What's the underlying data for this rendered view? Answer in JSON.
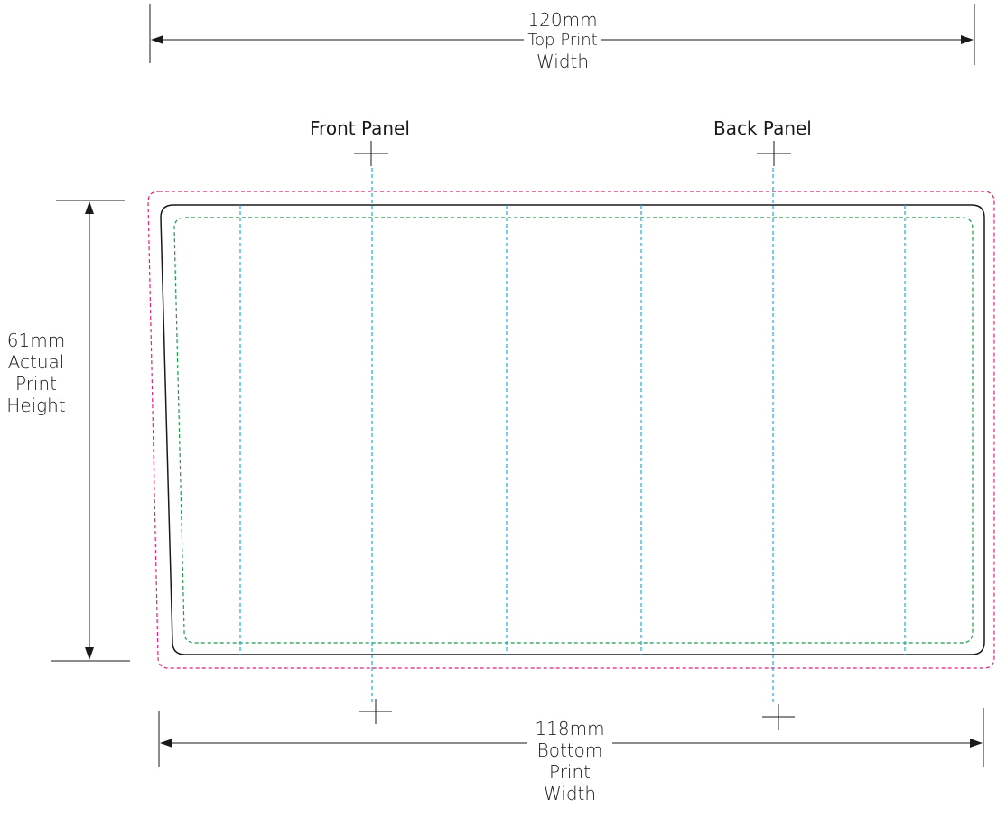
{
  "top_dimension": {
    "line1": "120mm",
    "line2": "Top Print",
    "line3": "Width"
  },
  "bottom_dimension": {
    "line1": "118mm",
    "line2": "Bottom",
    "line3": "Print",
    "line4": "Width"
  },
  "height_dimension": {
    "line1": "61mm",
    "line2": "Actual",
    "line3": "Print",
    "line4": "Height"
  },
  "front_panel_label": "Front Panel",
  "back_panel_label": "Back Panel",
  "colors": {
    "bleed_line": "#e0207a",
    "safe_line": "#1a9a4a",
    "panel_guides": "#1aaede",
    "trim_line": "#1a1a1a",
    "dimension_lines": "#1a1a1a"
  }
}
